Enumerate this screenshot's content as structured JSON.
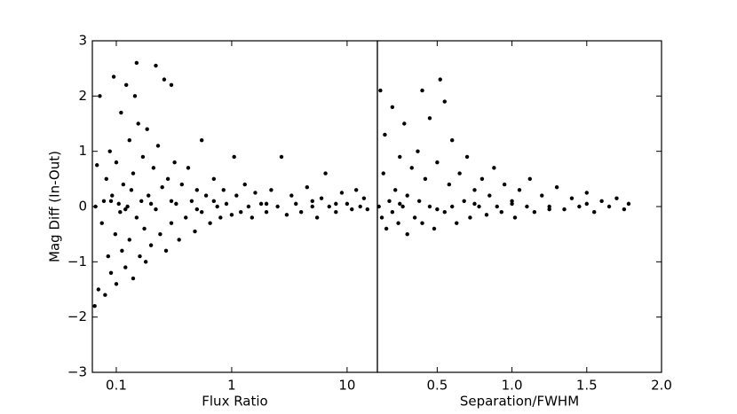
{
  "chart_data": [
    {
      "type": "scatter",
      "xlabel": "Flux Ratio",
      "ylabel": "Mag Diff (In-Out)",
      "xscale": "log",
      "color": "#000000",
      "xlim": [
        0.062,
        18.3
      ],
      "xticks": [
        0.1,
        1,
        10
      ],
      "ylim": [
        -3,
        3
      ],
      "yticks": [
        {
          "value": -3,
          "label": "−3"
        },
        {
          "value": -2,
          "label": "−2"
        },
        {
          "value": -1,
          "label": "−1"
        },
        0,
        1,
        2,
        3
      ],
      "x": [
        0.065,
        0.07,
        0.068,
        0.072,
        0.075,
        0.078,
        0.08,
        0.082,
        0.085,
        0.088,
        0.09,
        0.092,
        0.095,
        0.098,
        0.1,
        0.1,
        0.105,
        0.108,
        0.11,
        0.112,
        0.115,
        0.12,
        0.122,
        0.125,
        0.13,
        0.13,
        0.135,
        0.14,
        0.14,
        0.145,
        0.15,
        0.15,
        0.155,
        0.16,
        0.165,
        0.17,
        0.175,
        0.18,
        0.185,
        0.19,
        0.2,
        0.21,
        0.22,
        0.22,
        0.23,
        0.24,
        0.25,
        0.26,
        0.27,
        0.28,
        0.3,
        0.3,
        0.32,
        0.33,
        0.35,
        0.37,
        0.4,
        0.42,
        0.45,
        0.48,
        0.5,
        0.55,
        0.55,
        0.6,
        0.65,
        0.7,
        0.75,
        0.8,
        0.85,
        0.9,
        1.0,
        1.05,
        1.1,
        1.2,
        1.3,
        1.4,
        1.5,
        1.6,
        1.8,
        2.0,
        2.2,
        2.5,
        2.7,
        3.0,
        3.3,
        3.6,
        4.0,
        4.5,
        5.0,
        5.5,
        6.0,
        6.5,
        7.0,
        8.0,
        9.0,
        10,
        11,
        12,
        13,
        14,
        15,
        0.066,
        0.09,
        0.12,
        0.2,
        0.3,
        0.5,
        0.7,
        2.0,
        5.0,
        8.0
      ],
      "values": [
        -1.8,
        -1.5,
        0.75,
        2.0,
        -0.3,
        0.1,
        -1.6,
        0.5,
        -0.9,
        1.0,
        -1.2,
        0.2,
        2.35,
        -0.5,
        0.8,
        -1.4,
        0.05,
        -0.1,
        1.7,
        -0.8,
        0.4,
        -1.1,
        2.2,
        0.0,
        -0.6,
        1.2,
        0.3,
        -1.3,
        0.6,
        2.0,
        2.6,
        -0.2,
        1.5,
        -0.9,
        0.1,
        0.9,
        -0.4,
        -1.0,
        1.4,
        0.2,
        -0.7,
        0.7,
        2.55,
        -0.05,
        1.1,
        -0.5,
        0.35,
        2.3,
        -0.8,
        0.5,
        2.2,
        -0.3,
        0.8,
        0.05,
        -0.6,
        0.4,
        -0.2,
        0.7,
        0.1,
        -0.45,
        0.3,
        1.2,
        -0.1,
        0.2,
        -0.3,
        0.5,
        0.0,
        -0.2,
        0.3,
        0.05,
        -0.15,
        0.9,
        0.2,
        -0.1,
        0.4,
        0.0,
        -0.2,
        0.25,
        0.05,
        -0.1,
        0.3,
        0.0,
        0.9,
        -0.15,
        0.2,
        0.05,
        -0.1,
        0.35,
        0.0,
        -0.2,
        0.15,
        0.6,
        0.0,
        -0.1,
        0.25,
        0.05,
        -0.05,
        0.3,
        0.0,
        0.15,
        -0.05,
        0.0,
        0.1,
        -0.05,
        0.05,
        0.1,
        -0.05,
        0.1,
        0.05,
        0.1,
        0.05
      ]
    },
    {
      "type": "scatter",
      "xlabel": "Separation/FWHM",
      "color": "#000000",
      "xlim": [
        0.1,
        2.0
      ],
      "xticks": [
        0.5,
        {
          "value": 1.0,
          "label": "1.0"
        },
        1.5,
        {
          "value": 2.0,
          "label": "2.0"
        }
      ],
      "ylim": [
        -3,
        3
      ],
      "x": [
        0.12,
        0.11,
        0.13,
        0.14,
        0.15,
        0.16,
        0.18,
        0.2,
        0.2,
        0.22,
        0.24,
        0.25,
        0.27,
        0.28,
        0.3,
        0.3,
        0.33,
        0.35,
        0.37,
        0.38,
        0.4,
        0.4,
        0.42,
        0.45,
        0.45,
        0.48,
        0.5,
        0.52,
        0.55,
        0.55,
        0.58,
        0.6,
        0.6,
        0.63,
        0.65,
        0.68,
        0.7,
        0.72,
        0.75,
        0.78,
        0.8,
        0.83,
        0.85,
        0.88,
        0.9,
        0.93,
        0.95,
        1.0,
        1.02,
        1.05,
        1.1,
        1.12,
        1.15,
        1.2,
        1.25,
        1.3,
        1.35,
        1.4,
        1.45,
        1.5,
        1.55,
        1.6,
        1.65,
        1.7,
        1.75,
        1.78,
        0.25,
        0.5,
        0.75,
        1.0,
        1.25,
        1.5
      ],
      "values": [
        2.1,
        0.0,
        -0.2,
        0.6,
        1.3,
        -0.4,
        0.1,
        1.8,
        -0.1,
        0.3,
        -0.3,
        0.9,
        0.0,
        1.5,
        -0.5,
        0.2,
        0.7,
        -0.2,
        1.0,
        0.1,
        2.1,
        -0.3,
        0.5,
        1.6,
        0.0,
        -0.4,
        0.8,
        2.3,
        1.9,
        -0.1,
        0.4,
        1.2,
        0.0,
        -0.3,
        0.6,
        0.1,
        0.9,
        -0.2,
        0.3,
        0.0,
        0.5,
        -0.15,
        0.2,
        0.7,
        0.0,
        -0.1,
        0.4,
        0.05,
        -0.2,
        0.3,
        0.0,
        0.5,
        -0.1,
        0.2,
        0.0,
        0.35,
        -0.05,
        0.15,
        0.0,
        0.25,
        -0.1,
        0.1,
        0.0,
        0.15,
        -0.05,
        0.05,
        0.05,
        -0.05,
        0.05,
        0.1,
        -0.05,
        0.05
      ]
    }
  ]
}
